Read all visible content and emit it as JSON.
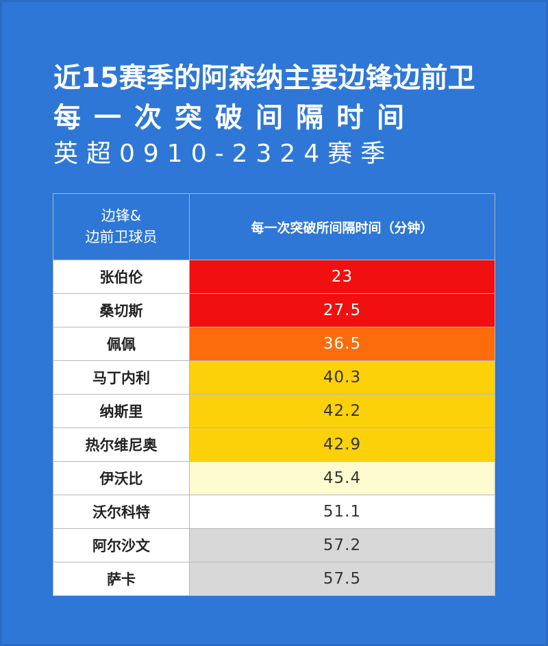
{
  "title": {
    "line1": "近15赛季的阿森纳主要边锋边前卫",
    "line2": "每一次突破间隔时间",
    "line3": "英超0910-2324赛季"
  },
  "table": {
    "col1_header_line1": "边锋&",
    "col1_header_line2": "边前卫球员",
    "col2_header": "每一次突破所间隔时间（分钟）"
  },
  "chart_data": {
    "type": "table",
    "title": "近15赛季的阿森纳主要边锋边前卫每一次突破间隔时间",
    "subtitle": "英超0910-2324赛季",
    "columns": [
      "边锋&边前卫球员",
      "每一次突破所间隔时间（分钟）"
    ],
    "rows": [
      {
        "player": "张伯伦",
        "value": "23",
        "color": "#f20f0f"
      },
      {
        "player": "桑切斯",
        "value": "27.5",
        "color": "#f20f0f"
      },
      {
        "player": "佩佩",
        "value": "36.5",
        "color": "#fd6c0c"
      },
      {
        "player": "马丁内利",
        "value": "40.3",
        "color": "#fdd10a"
      },
      {
        "player": "纳斯里",
        "value": "42.2",
        "color": "#fdd10a"
      },
      {
        "player": "热尔维尼奥",
        "value": "42.9",
        "color": "#fdd10a"
      },
      {
        "player": "伊沃比",
        "value": "45.4",
        "color": "#fefbd0"
      },
      {
        "player": "沃尔科特",
        "value": "51.1",
        "color": "#ffffff"
      },
      {
        "player": "阿尔沙文",
        "value": "57.2",
        "color": "#d8d8d8"
      },
      {
        "player": "萨卡",
        "value": "57.5",
        "color": "#d8d8d8"
      }
    ]
  }
}
